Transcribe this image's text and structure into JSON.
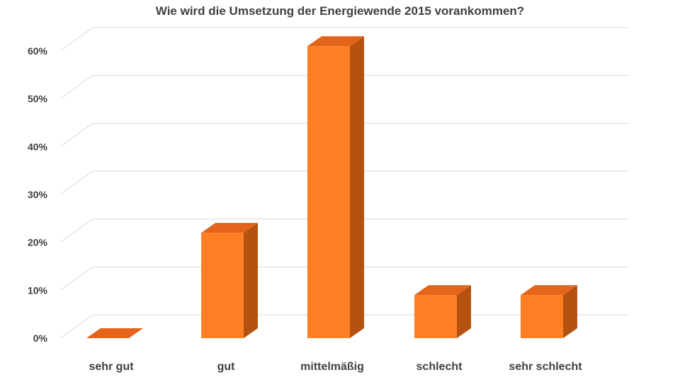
{
  "chart_data": {
    "type": "bar",
    "title": "Wie wird die Umsetzung der Energiewende 2015 vorankommen?",
    "categories": [
      "sehr gut",
      "gut",
      "mittelmäßig",
      "schlecht",
      "sehr schlecht"
    ],
    "values": [
      0,
      22,
      61,
      9,
      9
    ],
    "ylim": [
      0,
      60
    ],
    "yticks": [
      0,
      10,
      20,
      30,
      40,
      50,
      60
    ],
    "ytick_labels": [
      "0%",
      "10%",
      "20%",
      "30%",
      "40%",
      "50%",
      "60%"
    ],
    "grid": true,
    "legend": "none",
    "colors": {
      "front": "#FF7F24",
      "top": "#E4641C",
      "side": "#B5520F",
      "grid": "#D9D9D9",
      "text": "#404040"
    }
  }
}
